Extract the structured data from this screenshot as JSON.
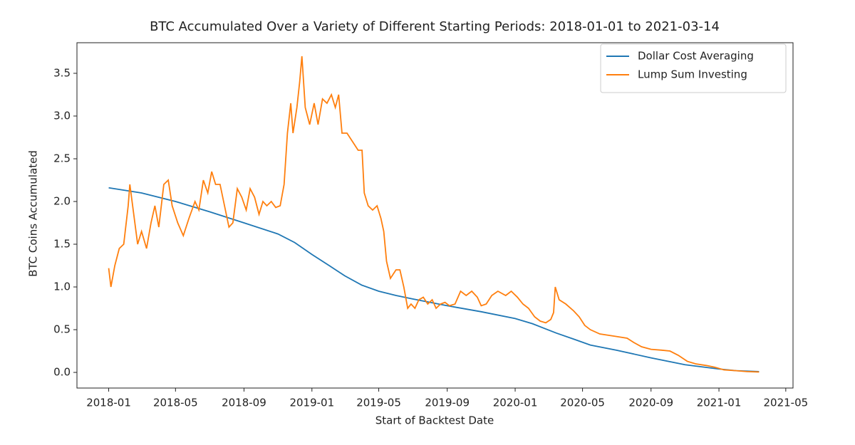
{
  "chart_data": {
    "type": "line",
    "title": "BTC Accumulated Over a Variety of Different Starting Periods: 2018-01-01 to 2021-03-14",
    "x_label": "Start of Backtest Date",
    "y_label": "BTC Coins Accumulated",
    "xlim": [
      "2017-11-05",
      "2021-05-14"
    ],
    "xticks": [
      {
        "value": "2018-01-01",
        "label": "2018-01"
      },
      {
        "value": "2018-05-01",
        "label": "2018-05"
      },
      {
        "value": "2018-09-01",
        "label": "2018-09"
      },
      {
        "value": "2019-01-01",
        "label": "2019-01"
      },
      {
        "value": "2019-05-01",
        "label": "2019-05"
      },
      {
        "value": "2019-09-01",
        "label": "2019-09"
      },
      {
        "value": "2020-01-01",
        "label": "2020-01"
      },
      {
        "value": "2020-05-01",
        "label": "2020-05"
      },
      {
        "value": "2020-09-01",
        "label": "2020-09"
      },
      {
        "value": "2021-01-01",
        "label": "2021-01"
      },
      {
        "value": "2021-05-01",
        "label": "2021-05"
      }
    ],
    "ylim": [
      -0.183,
      3.858
    ],
    "yticks": [
      {
        "value": 0,
        "label": "0.0"
      },
      {
        "value": 0.5,
        "label": "0.5"
      },
      {
        "value": 1,
        "label": "1.0"
      },
      {
        "value": 1.5,
        "label": "1.5"
      },
      {
        "value": 2,
        "label": "2.0"
      },
      {
        "value": 2.5,
        "label": "2.5"
      },
      {
        "value": 3,
        "label": "3.0"
      },
      {
        "value": 3.5,
        "label": "3.5"
      }
    ],
    "grid": false,
    "legend": "upper right",
    "series": [
      {
        "name": "Dollar Cost Averaging",
        "color": "#1f77b4",
        "x": [
          "2018-01-01",
          "2018-03-01",
          "2018-05-01",
          "2018-07-01",
          "2018-09-01",
          "2018-11-01",
          "2018-12-01",
          "2019-01-01",
          "2019-02-01",
          "2019-03-01",
          "2019-04-01",
          "2019-05-01",
          "2019-06-01",
          "2019-07-01",
          "2019-09-01",
          "2019-11-01",
          "2020-01-01",
          "2020-02-01",
          "2020-03-15",
          "2020-04-15",
          "2020-05-15",
          "2020-07-01",
          "2020-09-01",
          "2020-11-01",
          "2021-01-01",
          "2021-02-01",
          "2021-03-14"
        ],
        "values": [
          2.16,
          2.1,
          2.0,
          1.88,
          1.75,
          1.62,
          1.52,
          1.38,
          1.25,
          1.13,
          1.02,
          0.95,
          0.9,
          0.86,
          0.78,
          0.71,
          0.63,
          0.57,
          0.46,
          0.39,
          0.32,
          0.26,
          0.17,
          0.09,
          0.04,
          0.02,
          0.01
        ]
      },
      {
        "name": "Lump Sum Investing",
        "color": "#ff7f0e",
        "x": [
          "2018-01-01",
          "2018-01-05",
          "2018-01-12",
          "2018-01-20",
          "2018-01-28",
          "2018-02-05",
          "2018-02-08",
          "2018-02-15",
          "2018-02-22",
          "2018-03-01",
          "2018-03-10",
          "2018-03-18",
          "2018-03-25",
          "2018-04-01",
          "2018-04-10",
          "2018-04-18",
          "2018-04-25",
          "2018-05-05",
          "2018-05-15",
          "2018-05-25",
          "2018-06-05",
          "2018-06-12",
          "2018-06-20",
          "2018-06-28",
          "2018-07-05",
          "2018-07-12",
          "2018-07-20",
          "2018-07-28",
          "2018-08-05",
          "2018-08-12",
          "2018-08-20",
          "2018-08-28",
          "2018-09-05",
          "2018-09-12",
          "2018-09-20",
          "2018-09-28",
          "2018-10-05",
          "2018-10-12",
          "2018-10-20",
          "2018-10-28",
          "2018-11-05",
          "2018-11-12",
          "2018-11-18",
          "2018-11-24",
          "2018-11-28",
          "2018-12-05",
          "2018-12-10",
          "2018-12-14",
          "2018-12-20",
          "2018-12-28",
          "2019-01-05",
          "2019-01-12",
          "2019-01-20",
          "2019-01-28",
          "2019-02-05",
          "2019-02-12",
          "2019-02-18",
          "2019-02-24",
          "2019-03-05",
          "2019-03-15",
          "2019-03-25",
          "2019-04-01",
          "2019-04-05",
          "2019-04-12",
          "2019-04-20",
          "2019-04-28",
          "2019-05-05",
          "2019-05-10",
          "2019-05-15",
          "2019-05-22",
          "2019-06-01",
          "2019-06-08",
          "2019-06-15",
          "2019-06-22",
          "2019-06-28",
          "2019-07-05",
          "2019-07-12",
          "2019-07-20",
          "2019-07-28",
          "2019-08-05",
          "2019-08-12",
          "2019-08-20",
          "2019-08-28",
          "2019-09-05",
          "2019-09-15",
          "2019-09-25",
          "2019-10-05",
          "2019-10-15",
          "2019-10-25",
          "2019-11-01",
          "2019-11-10",
          "2019-11-20",
          "2019-12-01",
          "2019-12-15",
          "2019-12-25",
          "2020-01-05",
          "2020-01-15",
          "2020-01-25",
          "2020-02-05",
          "2020-02-15",
          "2020-02-25",
          "2020-03-05",
          "2020-03-10",
          "2020-03-13",
          "2020-03-20",
          "2020-04-01",
          "2020-04-15",
          "2020-04-25",
          "2020-05-05",
          "2020-05-15",
          "2020-06-01",
          "2020-07-01",
          "2020-07-20",
          "2020-08-01",
          "2020-08-15",
          "2020-09-01",
          "2020-09-20",
          "2020-10-05",
          "2020-10-20",
          "2020-11-05",
          "2020-11-20",
          "2020-12-10",
          "2020-12-25",
          "2021-01-10",
          "2021-02-01",
          "2021-02-20",
          "2021-03-14"
        ],
        "values": [
          1.22,
          1.0,
          1.25,
          1.45,
          1.5,
          1.95,
          2.2,
          1.85,
          1.5,
          1.65,
          1.45,
          1.75,
          1.95,
          1.7,
          2.2,
          2.25,
          1.95,
          1.75,
          1.6,
          1.8,
          2.0,
          1.9,
          2.25,
          2.1,
          2.35,
          2.2,
          2.2,
          1.95,
          1.7,
          1.75,
          2.15,
          2.05,
          1.9,
          2.15,
          2.05,
          1.85,
          2.0,
          1.95,
          2.0,
          1.93,
          1.95,
          2.2,
          2.8,
          3.15,
          2.8,
          3.1,
          3.4,
          3.7,
          3.1,
          2.9,
          3.15,
          2.9,
          3.2,
          3.15,
          3.25,
          3.1,
          3.25,
          2.8,
          2.8,
          2.7,
          2.6,
          2.6,
          2.1,
          1.95,
          1.9,
          1.95,
          1.8,
          1.65,
          1.3,
          1.1,
          1.2,
          1.2,
          1.0,
          0.75,
          0.8,
          0.75,
          0.85,
          0.88,
          0.8,
          0.85,
          0.75,
          0.8,
          0.82,
          0.78,
          0.8,
          0.95,
          0.9,
          0.95,
          0.88,
          0.78,
          0.8,
          0.9,
          0.95,
          0.9,
          0.95,
          0.88,
          0.8,
          0.75,
          0.65,
          0.6,
          0.58,
          0.62,
          0.7,
          1.0,
          0.85,
          0.8,
          0.72,
          0.65,
          0.55,
          0.5,
          0.45,
          0.42,
          0.4,
          0.35,
          0.3,
          0.27,
          0.26,
          0.25,
          0.2,
          0.13,
          0.1,
          0.08,
          0.06,
          0.03,
          0.02,
          0.01,
          0.005
        ]
      }
    ]
  }
}
